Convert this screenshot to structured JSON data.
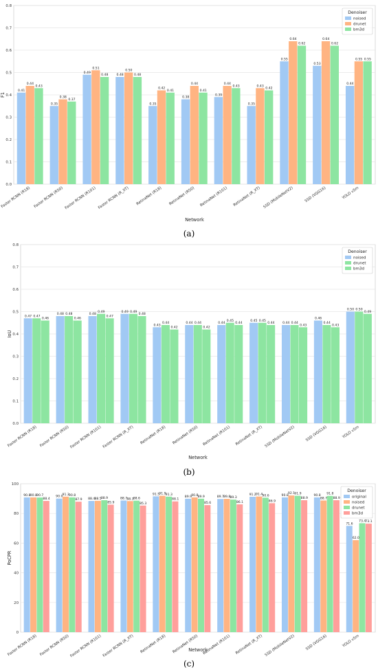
{
  "chart_data": [
    {
      "type": "bar",
      "caption": "(a)",
      "xlabel": "Network",
      "ylabel": "F1",
      "ylim": [
        0,
        0.8
      ],
      "yticks": [
        "0.0",
        "0.1",
        "0.2",
        "0.3",
        "0.4",
        "0.5",
        "0.6",
        "0.7",
        "0.8"
      ],
      "grid": true,
      "legend": {
        "title": "Denoiser",
        "position": "top-right"
      },
      "categories": [
        "Faster RCNN (R18)",
        "Faster RCNN (R50)",
        "Faster RCNN (R101)",
        "Faster RCNN (R_XT)",
        "RetinaNet (R18)",
        "RetinaNet (R50)",
        "RetinaNet (R101)",
        "RetinaNet (R_XT)",
        "SSD (MobileNetV2)",
        "SSD (VGG16)",
        "YOLO v5m"
      ],
      "series": [
        {
          "name": "noised",
          "color": "#a1c9f4",
          "values": [
            0.41,
            0.35,
            0.49,
            0.48,
            0.35,
            0.38,
            0.39,
            0.35,
            0.55,
            0.53,
            0.44
          ],
          "labels": [
            "0.41",
            "0.35",
            "0.49",
            "0.48",
            "0.35",
            "0.38",
            "0.39",
            "0.35",
            "0.55",
            "0.53",
            "0.44"
          ]
        },
        {
          "name": "drunet",
          "color": "#ffb482",
          "values": [
            0.44,
            0.38,
            0.51,
            0.5,
            0.42,
            0.44,
            0.44,
            0.43,
            0.64,
            0.64,
            0.55
          ],
          "labels": [
            "0.44",
            "0.38",
            "0.51",
            "0.50",
            "0.42",
            "0.44",
            "0.44",
            "0.43",
            "0.64",
            "0.64",
            "0.55"
          ]
        },
        {
          "name": "bm3d",
          "color": "#8de5a1",
          "values": [
            0.43,
            0.37,
            0.48,
            0.48,
            0.41,
            0.41,
            0.43,
            0.42,
            0.62,
            0.62,
            0.55
          ],
          "labels": [
            "0.43",
            "0.37",
            "0.48",
            "0.48",
            "0.41",
            "0.41",
            "0.43",
            "0.42",
            "0.62",
            "0.62",
            "0.55"
          ]
        }
      ]
    },
    {
      "type": "bar",
      "caption": "(b)",
      "xlabel": "Network",
      "ylabel": "IoU",
      "ylim": [
        0,
        0.8
      ],
      "yticks": [
        "0.0",
        "0.1",
        "0.2",
        "0.3",
        "0.4",
        "0.5",
        "0.6",
        "0.7",
        "0.8"
      ],
      "grid": true,
      "legend": {
        "title": "Denoiser",
        "position": "top-right"
      },
      "categories": [
        "Faster RCNN (R18)",
        "Faster RCNN (R50)",
        "Faster RCNN (R101)",
        "Faster RCNN (R_XT)",
        "RetinaNet (R18)",
        "RetinaNet (R50)",
        "RetinaNet (R101)",
        "RetinaNet (R_XT)",
        "SSD (MobileNetV2)",
        "SSD (VGG16)",
        "YOLO v5m"
      ],
      "series": [
        {
          "name": "noised",
          "color": "#a1c9f4",
          "values": [
            0.47,
            0.48,
            0.48,
            0.49,
            0.43,
            0.44,
            0.44,
            0.45,
            0.44,
            0.46,
            0.5
          ],
          "labels": [
            "0.47",
            "0.48",
            "0.48",
            "0.49",
            "0.43",
            "0.44",
            "0.44",
            "0.45",
            "0.44",
            "0.46",
            "0.50"
          ]
        },
        {
          "name": "drunet",
          "color": "#8de5a1",
          "values": [
            0.47,
            0.48,
            0.49,
            0.49,
            0.44,
            0.44,
            0.45,
            0.45,
            0.44,
            0.44,
            0.5
          ],
          "labels": [
            "0.47",
            "0.48",
            "0.49",
            "0.49",
            "0.44",
            "0.44",
            "0.45",
            "0.45",
            "0.44",
            "0.44",
            "0.50"
          ]
        },
        {
          "name": "bm3d",
          "color": "#8de5a1",
          "values": [
            0.46,
            0.46,
            0.47,
            0.48,
            0.42,
            0.42,
            0.44,
            0.44,
            0.43,
            0.43,
            0.49
          ],
          "labels": [
            "0.46",
            "0.46",
            "0.47",
            "0.48",
            "0.42",
            "0.42",
            "0.44",
            "0.44",
            "0.43",
            "0.43",
            "0.49"
          ]
        }
      ]
    },
    {
      "type": "bar",
      "caption": "(c)",
      "xlabel": "Network",
      "ylabel": "PoCPR",
      "ylim": [
        0,
        100
      ],
      "yticks": [
        "0",
        "20",
        "40",
        "60",
        "80",
        "100"
      ],
      "grid": true,
      "legend": {
        "title": "Denoiser",
        "position": "top-right"
      },
      "categories": [
        "Faster RCNN (R18)",
        "Faster RCNN (R50)",
        "Faster RCNN (R101)",
        "Faster RCNN (R_XT)",
        "RetinaNet (R18)",
        "RetinaNet (R50)",
        "RetinaNet (R101)",
        "RetinaNet (R_XT)",
        "SSD (MobileNetV2)",
        "SSD (VGG16)",
        "YOLO v5m"
      ],
      "series": [
        {
          "name": "original",
          "color": "#a1c9f4",
          "values": [
            90.8,
            90.0,
            88.4,
            88.7,
            91.5,
            89.9,
            89.7,
            91.2,
            90.8,
            90.8,
            71.6
          ],
          "labels": [
            "90.8",
            "90.0",
            "88.4",
            "88.7",
            "91.5",
            "89.9",
            "89.7",
            "91.2",
            "90.8",
            "90.8",
            "71.6"
          ]
        },
        {
          "name": "noised",
          "color": "#ffb482",
          "values": [
            90.8,
            91.3,
            88.5,
            88.3,
            91.9,
            90.8,
            89.8,
            91.4,
            92.1,
            88.7,
            62.0
          ],
          "labels": [
            "90.8",
            "91.3",
            "88.5",
            "88.3",
            "91.9",
            "90.8",
            "89.8",
            "91.4",
            "92.1",
            "88.7",
            "62.0"
          ]
        },
        {
          "name": "drunet",
          "color": "#8de5a1",
          "values": [
            90.7,
            90.8,
            88.9,
            88.6,
            91.3,
            89.9,
            89.3,
            90.6,
            91.9,
            91.8,
            73.4
          ],
          "labels": [
            "90.7",
            "90.8",
            "88.9",
            "88.6",
            "91.3",
            "89.9",
            "89.3",
            "90.6",
            "91.9",
            "91.8",
            "73.4"
          ]
        },
        {
          "name": "bm3d",
          "color": "#ff9f9b",
          "values": [
            88.4,
            87.9,
            85.9,
            85.3,
            88.1,
            85.6,
            86.1,
            86.9,
            88.9,
            88.9,
            73.1
          ],
          "labels": [
            "88.4",
            "87.9",
            "85.9",
            "85.3",
            "88.1",
            "85.6",
            "86.1",
            "86.9",
            "88.9",
            "88.9",
            "73.1"
          ]
        }
      ]
    }
  ]
}
